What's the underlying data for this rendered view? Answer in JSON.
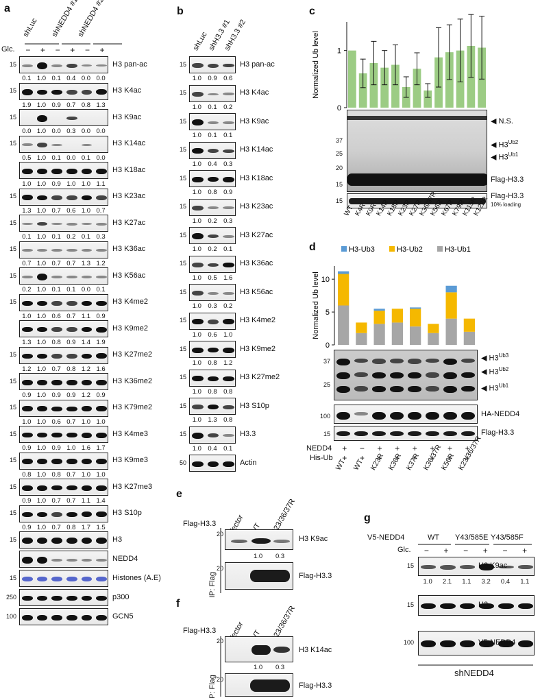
{
  "panel_a": {
    "letter": "a",
    "lane_headers": [
      "shLuc",
      "shNEDD4 #1",
      "shNEDD4 #2"
    ],
    "glc_label": "Glc.",
    "glc_signs": [
      "−",
      "+",
      "−",
      "+",
      "−",
      "+"
    ],
    "blots": [
      {
        "label": "H3 pan-ac",
        "mw": "15",
        "quant": [
          "0.1",
          "1.0",
          "0.1",
          "0.4",
          "0.0",
          "0.0"
        ],
        "bands": [
          0.1,
          1.0,
          0.1,
          0.4,
          0.05,
          0.05
        ]
      },
      {
        "label": "H3 K4ac",
        "mw": "15",
        "quant": [
          "1.9",
          "1.0",
          "0.9",
          "0.7",
          "0.8",
          "1.3"
        ],
        "bands": [
          0.8,
          0.6,
          0.6,
          0.5,
          0.5,
          0.7
        ]
      },
      {
        "label": "H3 K9ac",
        "mw": "15",
        "quant": [
          "0.0",
          "1.0",
          "0.0",
          "0.3",
          "0.0",
          "0.0"
        ],
        "bands": [
          0.0,
          1.0,
          0.0,
          0.35,
          0.0,
          0.0
        ]
      },
      {
        "label": "H3 K14ac",
        "mw": "15",
        "quant": [
          "0.5",
          "1.0",
          "0.1",
          "0.0",
          "0.1",
          "0.0"
        ],
        "bands": [
          0.15,
          0.5,
          0.05,
          0.0,
          0.05,
          0.0
        ]
      },
      {
        "label": "H3 K18ac",
        "mw": "",
        "quant": [
          "1.0",
          "1.0",
          "0.9",
          "1.0",
          "1.0",
          "1.1"
        ],
        "bands": [
          0.7,
          0.7,
          0.7,
          0.7,
          0.7,
          0.7
        ]
      },
      {
        "label": "H3 K23ac",
        "mw": "15",
        "quant": [
          "1.3",
          "1.0",
          "0.7",
          "0.6",
          "1.0",
          "0.7"
        ],
        "bands": [
          0.7,
          0.6,
          0.5,
          0.5,
          0.6,
          0.5
        ]
      },
      {
        "label": "H3 K27ac",
        "mw": "15",
        "quant": [
          "0.1",
          "1.0",
          "0.1",
          "0.2",
          "0.1",
          "0.3"
        ],
        "bands": [
          0.05,
          0.35,
          0.05,
          0.1,
          0.05,
          0.15
        ]
      },
      {
        "label": "H3 K36ac",
        "mw": "15",
        "quant": [
          "0.7",
          "1.0",
          "0.7",
          "0.7",
          "1.3",
          "1.2"
        ],
        "bands": [
          0.1,
          0.12,
          0.1,
          0.1,
          0.12,
          0.12
        ]
      },
      {
        "label": "H3 K56ac",
        "mw": "15",
        "quant": [
          "0.2",
          "1.0",
          "0.1",
          "0.1",
          "0.0",
          "0.1"
        ],
        "bands": [
          0.2,
          1.0,
          0.15,
          0.15,
          0.1,
          0.15
        ]
      },
      {
        "label": "H3 K4me2",
        "mw": "15",
        "quant": [
          "1.0",
          "1.0",
          "0.6",
          "0.7",
          "1.1",
          "0.9"
        ],
        "bands": [
          0.6,
          0.6,
          0.5,
          0.5,
          0.6,
          0.55
        ]
      },
      {
        "label": "H3 K9me2",
        "mw": "",
        "quant": [
          "1.3",
          "1.0",
          "0.8",
          "0.9",
          "1.4",
          "1.9"
        ],
        "bands": [
          0.6,
          0.55,
          0.5,
          0.5,
          0.6,
          0.7
        ]
      },
      {
        "label": "H3 K27me2",
        "mw": "15",
        "quant": [
          "1.2",
          "1.0",
          "0.7",
          "0.8",
          "1.2",
          "1.6"
        ],
        "bands": [
          0.6,
          0.55,
          0.5,
          0.5,
          0.6,
          0.65
        ]
      },
      {
        "label": "H3 K36me2",
        "mw": "15",
        "quant": [
          "0.9",
          "1.0",
          "0.9",
          "0.9",
          "1.2",
          "0.9"
        ],
        "bands": [
          0.7,
          0.7,
          0.7,
          0.7,
          0.75,
          0.7
        ]
      },
      {
        "label": "H3 K79me2",
        "mw": "15",
        "quant": [
          "1.0",
          "1.0",
          "0.6",
          "0.7",
          "1.0",
          "1.0"
        ],
        "bands": [
          0.7,
          0.7,
          0.6,
          0.6,
          0.7,
          0.7
        ]
      },
      {
        "label": "H3 K4me3",
        "mw": "15",
        "quant": [
          "0.9",
          "1.0",
          "0.9",
          "1.0",
          "1.6",
          "1.7"
        ],
        "bands": [
          0.6,
          0.6,
          0.6,
          0.6,
          0.7,
          0.7
        ]
      },
      {
        "label": "H3 K9me3",
        "mw": "15",
        "quant": [
          "0.8",
          "1.0",
          "0.8",
          "0.7",
          "1.0",
          "1.0"
        ],
        "bands": [
          0.7,
          0.7,
          0.65,
          0.65,
          0.7,
          0.7
        ]
      },
      {
        "label": "H3 K27me3",
        "mw": "15",
        "quant": [
          "0.9",
          "1.0",
          "0.7",
          "0.7",
          "1.1",
          "1.4"
        ],
        "bands": [
          0.65,
          0.65,
          0.6,
          0.6,
          0.65,
          0.7
        ]
      },
      {
        "label": "H3 S10p",
        "mw": "15",
        "quant": [
          "0.9",
          "1.0",
          "0.7",
          "0.8",
          "1.7",
          "1.5"
        ],
        "bands": [
          0.55,
          0.6,
          0.5,
          0.55,
          0.75,
          0.7
        ]
      },
      {
        "label": "H3",
        "mw": "15",
        "quant": [],
        "bands": [
          0.8,
          0.8,
          0.8,
          0.8,
          0.8,
          0.8
        ]
      },
      {
        "label": "NEDD4",
        "mw": "",
        "quant": [],
        "bands": [
          1.0,
          1.0,
          0.2,
          0.15,
          0.15,
          0.1
        ]
      },
      {
        "label": "Histones (A.E)",
        "mw": "15",
        "quant": [],
        "bands": [
          0.6,
          0.6,
          0.6,
          0.6,
          0.6,
          0.6
        ],
        "color": "#5566cc"
      },
      {
        "label": "p300",
        "mw": "250",
        "quant": [],
        "bands": [
          0.6,
          0.6,
          0.6,
          0.6,
          0.6,
          0.6
        ]
      },
      {
        "label": "GCN5",
        "mw": "100",
        "quant": [],
        "bands": [
          0.7,
          0.7,
          0.7,
          0.7,
          0.7,
          0.7
        ]
      }
    ]
  },
  "panel_b": {
    "letter": "b",
    "lane_headers": [
      "shLuc",
      "shH3.3 #1",
      "shH3.3 #2"
    ],
    "blots": [
      {
        "label": "H3 pan-ac",
        "mw": "15",
        "quant": [
          "1.0",
          "0.9",
          "0.6"
        ],
        "bands": [
          0.5,
          0.45,
          0.35
        ]
      },
      {
        "label": "H3 K4ac",
        "mw": "15",
        "quant": [
          "1.0",
          "0.1",
          "0.2"
        ],
        "bands": [
          0.5,
          0.05,
          0.1
        ]
      },
      {
        "label": "H3 K9ac",
        "mw": "15",
        "quant": [
          "1.0",
          "0.1",
          "0.1"
        ],
        "bands": [
          0.9,
          0.1,
          0.1
        ]
      },
      {
        "label": "H3 K14ac",
        "mw": "15",
        "quant": [
          "1.0",
          "0.4",
          "0.3"
        ],
        "bands": [
          0.7,
          0.4,
          0.35
        ]
      },
      {
        "label": "H3 K18ac",
        "mw": "15",
        "quant": [
          "1.0",
          "0.8",
          "0.9"
        ],
        "bands": [
          0.7,
          0.6,
          0.65
        ]
      },
      {
        "label": "H3 K23ac",
        "mw": "15",
        "quant": [
          "1.0",
          "0.2",
          "0.3"
        ],
        "bands": [
          0.5,
          0.15,
          0.2
        ]
      },
      {
        "label": "H3 K27ac",
        "mw": "15",
        "quant": [
          "1.0",
          "0.2",
          "0.1"
        ],
        "bands": [
          0.9,
          0.3,
          0.2
        ]
      },
      {
        "label": "H3 K36ac",
        "mw": "15",
        "quant": [
          "1.0",
          "0.5",
          "1.6"
        ],
        "bands": [
          0.5,
          0.35,
          0.6
        ]
      },
      {
        "label": "H3 K56ac",
        "mw": "15",
        "quant": [
          "1.0",
          "0.3",
          "0.2"
        ],
        "bands": [
          0.5,
          0.2,
          0.15
        ]
      },
      {
        "label": "H3 K4me2",
        "mw": "15",
        "quant": [
          "1.0",
          "0.6",
          "1.0"
        ],
        "bands": [
          0.7,
          0.5,
          0.7
        ]
      },
      {
        "label": "H3 K9me2",
        "mw": "15",
        "quant": [
          "1.0",
          "0.8",
          "1.2"
        ],
        "bands": [
          0.7,
          0.6,
          0.75
        ]
      },
      {
        "label": "H3 K27me2",
        "mw": "15",
        "quant": [
          "1.0",
          "0.8",
          "0.8"
        ],
        "bands": [
          0.7,
          0.6,
          0.6
        ]
      },
      {
        "label": "H3 S10p",
        "mw": "15",
        "quant": [
          "1.0",
          "1.3",
          "0.8"
        ],
        "bands": [
          0.5,
          0.6,
          0.45
        ]
      },
      {
        "label": "H3.3",
        "mw": "15",
        "quant": [
          "1.0",
          "0.4",
          "0.1"
        ],
        "bands": [
          0.9,
          0.4,
          0.15
        ]
      },
      {
        "label": "Actin",
        "mw": "50",
        "quant": [],
        "bands": [
          0.7,
          0.7,
          0.7
        ]
      }
    ]
  },
  "panel_c": {
    "letter": "c",
    "ylabel": "Normalized Ub level",
    "yticks": [
      "0",
      "1"
    ],
    "blot_labels": {
      "ns": "N.S.",
      "ub2": "H3",
      "ub2_sup": "Ub2",
      "ub1": "H3",
      "ub1_sup": "Ub1",
      "flag": "Flag-H3.3",
      "loading": "Flag-H3.3",
      "loading_note": "10% loading"
    },
    "mw": [
      "37",
      "25",
      "20",
      "15",
      "15"
    ],
    "lanes": [
      "WT",
      "K4R",
      "K9R",
      "K14R",
      "K18R",
      "K23R",
      "K27R",
      "K36/37R",
      "K56R",
      "K67R",
      "K79R",
      "K115R",
      "K122R"
    ]
  },
  "panel_d": {
    "letter": "d",
    "ylabel": "Normalized Ub level",
    "yticks": [
      "0",
      "5",
      "10"
    ],
    "legend": [
      "H3-Ub3",
      "H3-Ub2",
      "H3-Ub1"
    ],
    "blot_labels": {
      "ub3": "H3",
      "ub3_sup": "Ub3",
      "ub2": "H3",
      "ub2_sup": "Ub2",
      "ub1": "H3",
      "ub1_sup": "Ub1",
      "nedd4": "HA-NEDD4",
      "flag": "Flag-H3.3"
    },
    "mw": [
      "37",
      "25",
      "100",
      "15"
    ],
    "row_labels": [
      "NEDD4",
      "His-Ub"
    ],
    "nedd4_signs": [
      "+",
      "−",
      "+",
      "+",
      "+",
      "+",
      "+",
      "+"
    ],
    "hisub_signs": [
      "+",
      "+",
      "+",
      "+",
      "+",
      "+",
      "+",
      "+"
    ],
    "lanes": [
      "WT",
      "WT",
      "K23R",
      "K36R",
      "K37R",
      "K36/37R",
      "K56R",
      "K23/36/37R"
    ]
  },
  "panel_e": {
    "letter": "e",
    "row_label": "Flag-H3.3",
    "ip_label": "IP: Flag",
    "lanes": [
      "Vector",
      "WT",
      "K23/36/37R"
    ],
    "blots": [
      {
        "label": "H3 K9ac",
        "mw": "20",
        "quant": [
          "1.0",
          "0.3"
        ]
      },
      {
        "label": "Flag-H3.3",
        "mw": "20"
      }
    ]
  },
  "panel_f": {
    "letter": "f",
    "row_label": "Flag-H3.3",
    "ip_label": "IP: Flag",
    "lanes": [
      "Vector",
      "WT",
      "K23/36/37R"
    ],
    "blots": [
      {
        "label": "H3 K14ac",
        "mw": "20",
        "quant": [
          "1.0",
          "0.3"
        ]
      },
      {
        "label": "Flag-H3.3",
        "mw": "20"
      }
    ]
  },
  "panel_g": {
    "letter": "g",
    "row_label": "V5-NEDD4",
    "groups": [
      "WT",
      "Y43/585E",
      "Y43/585F"
    ],
    "glc_label": "Glc.",
    "glc_signs": [
      "−",
      "+",
      "−",
      "+",
      "−",
      "+"
    ],
    "blots": [
      {
        "label": "H3 K9ac",
        "mw": "15",
        "quant": [
          "1.0",
          "2.1",
          "1.1",
          "3.2",
          "0.4",
          "1.1"
        ]
      },
      {
        "label": "H3",
        "mw": "15"
      },
      {
        "label": "V5-NEDD4",
        "mw": "100"
      }
    ],
    "footer": "shNEDD4"
  },
  "chart_data": [
    {
      "type": "bar",
      "title": "",
      "ylabel": "Normalized Ub level",
      "xlabel": "",
      "ylim": [
        0,
        1.5
      ],
      "categories": [
        "WT",
        "K4R",
        "K9R",
        "K14R",
        "K18R",
        "K23R",
        "K27R",
        "K36/37R",
        "K56R",
        "K67R",
        "K79R",
        "K115R",
        "K122R"
      ],
      "values": [
        1.0,
        0.6,
        0.78,
        0.7,
        0.75,
        0.36,
        0.68,
        0.3,
        0.88,
        0.97,
        1.0,
        1.08,
        1.05
      ],
      "error": [
        0.0,
        0.25,
        0.38,
        0.3,
        0.35,
        0.18,
        0.28,
        0.12,
        0.52,
        0.48,
        0.55,
        0.55,
        0.55
      ],
      "color": "#9ccc84",
      "grid": false
    },
    {
      "type": "bar",
      "stacked": true,
      "title": "",
      "ylabel": "Normalized Ub level",
      "xlabel": "",
      "ylim": [
        0,
        12
      ],
      "legend_position": "top",
      "categories": [
        "WT",
        "WT",
        "K23R",
        "K36R",
        "K37R",
        "K36/37R",
        "K56R",
        "K23/36/37R"
      ],
      "series": [
        {
          "name": "H3-Ub1",
          "values": [
            6.0,
            1.8,
            3.2,
            3.4,
            2.8,
            1.8,
            4.0,
            2.0
          ],
          "color": "#a6a6a6"
        },
        {
          "name": "H3-Ub2",
          "values": [
            4.8,
            1.6,
            2.0,
            2.1,
            2.7,
            1.4,
            4.0,
            2.0
          ],
          "color": "#f5b800"
        },
        {
          "name": "H3-Ub3",
          "values": [
            0.4,
            0.0,
            0.3,
            0.0,
            0.2,
            0.0,
            1.0,
            0.0
          ],
          "color": "#5b9bd5"
        }
      ],
      "grid": false
    }
  ]
}
